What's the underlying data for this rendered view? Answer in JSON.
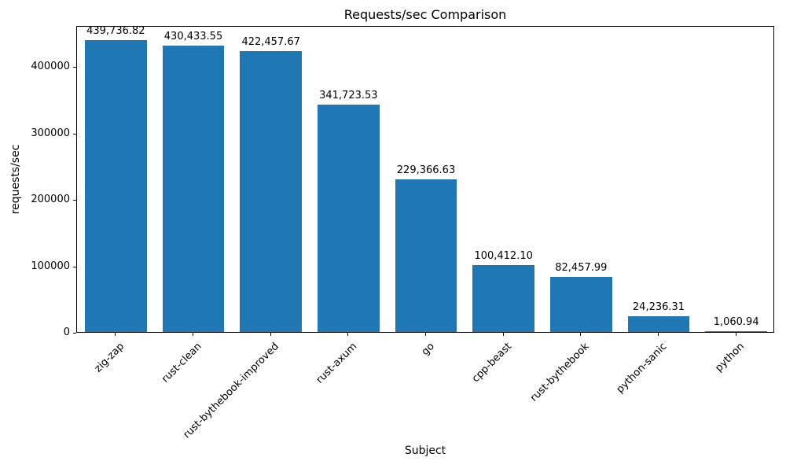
{
  "chart_data": {
    "type": "bar",
    "title": "Requests/sec Comparison",
    "xlabel": "Subject",
    "ylabel": "requests/sec",
    "categories": [
      "zig-zap",
      "rust-clean",
      "rust-bythebook-improved",
      "rust-axum",
      "go",
      "cpp-beast",
      "rust-bythebook",
      "python-sanic",
      "python"
    ],
    "values": [
      439736.82,
      430433.55,
      422457.67,
      341723.53,
      229366.63,
      100412.1,
      82457.99,
      24236.31,
      1060.94
    ],
    "value_labels": [
      "439,736.82",
      "430,433.55",
      "422,457.67",
      "341,723.53",
      "229,366.63",
      "100,412.10",
      "82,457.99",
      "24,236.31",
      "1,060.94"
    ],
    "ytick_values": [
      0,
      100000,
      200000,
      300000,
      400000
    ],
    "ytick_labels": [
      "0",
      "100000",
      "200000",
      "300000",
      "400000"
    ],
    "ylim": [
      0,
      461724
    ],
    "bar_color": "#1f77b4",
    "grid": false,
    "legend": "none"
  }
}
